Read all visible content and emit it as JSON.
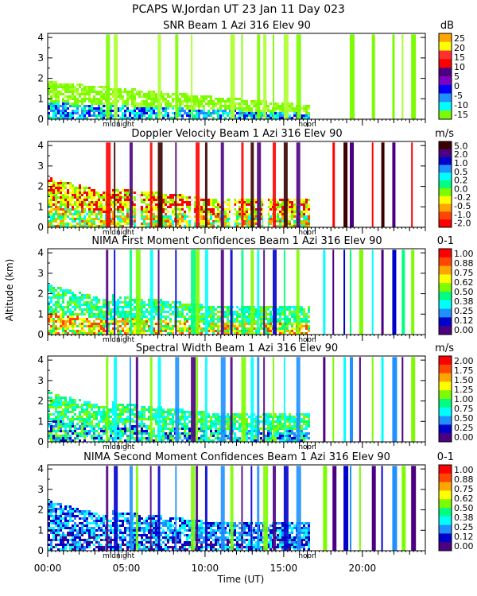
{
  "figure_title": "PCAPS W.Jordan UT  23 Jan 11 Day 023",
  "shared_axes": {
    "ylabel": "Altitude (km)",
    "xlabel": "Time (UT)",
    "x_range_hours": [
      0,
      24
    ],
    "x_tick_labels": [
      "00:00",
      "05:00",
      "10:00",
      "15:00",
      "20:00"
    ],
    "x_tick_hours": [
      0,
      5,
      10,
      15,
      20
    ],
    "y_range_km": [
      0,
      4.2
    ],
    "y_tick_labels": [
      "0",
      "1",
      "2",
      "3",
      "4"
    ],
    "y_ticks_km": [
      0,
      1,
      2,
      3,
      4
    ],
    "markers": [
      {
        "label": "midnight",
        "hour": 4.5
      },
      {
        "label": "noon",
        "hour": 16.5
      }
    ]
  },
  "chart_data": [
    {
      "type": "heatmap",
      "title": "SNR Beam 1 Azi 316 Elev 90",
      "unit": "dB",
      "colorbar": {
        "labels": [
          "25",
          "20",
          "15",
          "10",
          "5",
          "0",
          "-5",
          "-10",
          "-15"
        ],
        "colors": [
          "#ffa500",
          "#ffff00",
          "#ff3030",
          "#ff0000",
          "#4b0082",
          "#8000c0",
          "#0000ff",
          "#1e90ff",
          "#00ffff",
          "#7cfc00"
        ]
      }
    },
    {
      "type": "heatmap",
      "title": "Doppler Velocity Beam 1 Azi 316 Elev 90",
      "unit": "m/s",
      "colorbar": {
        "labels": [
          "5.0",
          "2.0",
          "1.0",
          "0.5",
          "0.2",
          "0.0",
          "-0.2",
          "-0.5",
          "-1.0",
          "-2.0"
        ],
        "colors": [
          "#3d0000",
          "#4b0082",
          "#0000cd",
          "#1e90ff",
          "#00ffff",
          "#00ff80",
          "#7cfc00",
          "#ffff00",
          "#ffa500",
          "#ff4500",
          "#ff0000"
        ]
      }
    },
    {
      "type": "heatmap",
      "title": "NIMA First Moment Confidences Beam 1 Azi 316 Elev 90",
      "unit": "0-1",
      "colorbar": {
        "labels": [
          "1.00",
          "0.88",
          "0.75",
          "0.62",
          "0.50",
          "0.38",
          "0.25",
          "0.12",
          "0.00"
        ],
        "colors": [
          "#ff0000",
          "#ff4500",
          "#ffa500",
          "#ffff00",
          "#7cfc00",
          "#00ff80",
          "#00ffff",
          "#1e90ff",
          "#0000cd",
          "#4b0082"
        ]
      }
    },
    {
      "type": "heatmap",
      "title": "Spectral Width Beam 1 Azi 316 Elev 90",
      "unit": "m/s",
      "colorbar": {
        "labels": [
          "2.00",
          "1.75",
          "1.50",
          "1.25",
          "1.00",
          "0.75",
          "0.50",
          "0.25",
          "0.00"
        ],
        "colors": [
          "#ff0000",
          "#ff4500",
          "#ffa500",
          "#ffff00",
          "#7cfc00",
          "#00ff80",
          "#00ffff",
          "#1e90ff",
          "#0000cd",
          "#4b0082"
        ]
      }
    },
    {
      "type": "heatmap",
      "title": "NIMA Second Moment Confidences Beam 1 Azi 316 Elev 90",
      "unit": "0-1",
      "colorbar": {
        "labels": [
          "1.00",
          "0.88",
          "0.75",
          "0.62",
          "0.50",
          "0.38",
          "0.25",
          "0.12",
          "0.00"
        ],
        "colors": [
          "#ff0000",
          "#ff4500",
          "#ffa500",
          "#ffff00",
          "#7cfc00",
          "#00ff80",
          "#00ffff",
          "#1e90ff",
          "#0000cd",
          "#4b0082"
        ]
      }
    }
  ]
}
